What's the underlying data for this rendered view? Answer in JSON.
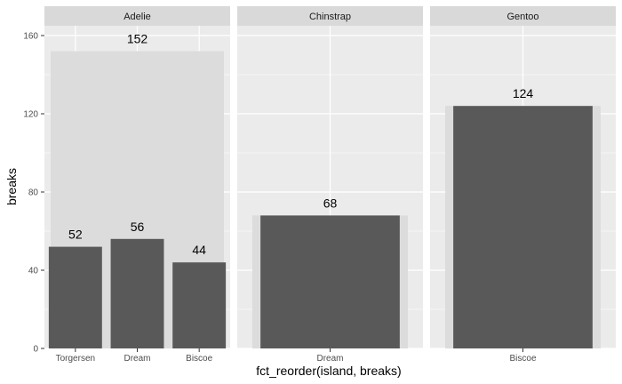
{
  "chart_data": {
    "type": "bar",
    "xlabel": "fct_reorder(island, breaks)",
    "ylabel": "breaks",
    "ylim": [
      0,
      165
    ],
    "yticks": [
      0,
      40,
      80,
      120,
      160
    ],
    "grid": true,
    "facets": [
      {
        "name": "Adelie",
        "total": 152,
        "categories": [
          "Torgersen",
          "Dream",
          "Biscoe"
        ],
        "values": [
          52,
          56,
          44
        ]
      },
      {
        "name": "Chinstrap",
        "total": 68,
        "categories": [
          "Dream"
        ],
        "values": [
          68
        ]
      },
      {
        "name": "Gentoo",
        "total": 124,
        "categories": [
          "Biscoe"
        ],
        "values": [
          124
        ]
      }
    ],
    "colors": {
      "bar": "#595959",
      "total_band": "#dcdcdc",
      "panel": "#ebebeb",
      "strip": "#d9d9d9",
      "grid": "#ffffff"
    }
  }
}
